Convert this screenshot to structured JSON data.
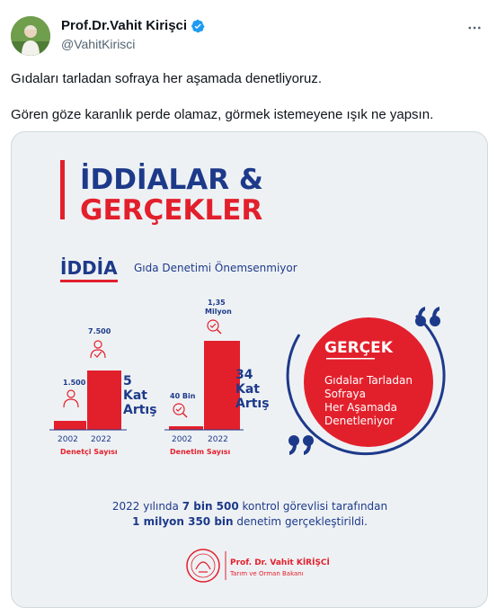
{
  "author": {
    "name": "Prof.Dr.Vahit Kirişci",
    "handle": "@VahitKirisci"
  },
  "tweet": {
    "line1": "Gıdaları tarladan sofraya her aşamada denetliyoruz.",
    "line2": "Gören göze karanlık perde olamaz, görmek istemeyene ışık ne yapsın."
  },
  "infographic": {
    "title_line1": "İDDİALAR &",
    "title_line2": "GERÇEKLER",
    "claim_label": "İDDİA",
    "claim_text": "Gıda Denetimi Önemsenmiyor",
    "chart1": {
      "low_value": "1.500",
      "high_value": "7.500",
      "multiplier_line1": "5",
      "multiplier_line2": "Kat",
      "multiplier_line3": "Artış",
      "year1": "2002",
      "year2": "2022",
      "caption": "Denetçi Sayısı"
    },
    "chart2": {
      "low_value": "40 Bin",
      "high_value_line1": "1,35",
      "high_value_line2": "Milyon",
      "multiplier_line1": "34",
      "multiplier_line2": "Kat",
      "multiplier_line3": "Artış",
      "year1": "2002",
      "year2": "2022",
      "caption": "Denetim Sayısı"
    },
    "fact_label": "GERÇEK",
    "fact_line1": "Gıdalar Tarladan",
    "fact_line2": "Sofraya",
    "fact_line3": "Her Aşamada",
    "fact_line4": "Denetleniyor",
    "summary_line1_a": "2022 yılında ",
    "summary_line1_b": "7 bin 500",
    "summary_line1_c": " kontrol görevlisi tarafından",
    "summary_line2_a": "1 milyon 350 bin",
    "summary_line2_b": " denetim gerçekleştirildi.",
    "signature_name": "Prof. Dr. Vahit KİRİŞCİ",
    "signature_title": "Tarım ve Orman Bakanı"
  },
  "colors": {
    "accent_red": "#e2202c",
    "navy": "#1d3a8a",
    "card_bg": "#eef1f4",
    "verified_blue": "#1d9bf0"
  }
}
